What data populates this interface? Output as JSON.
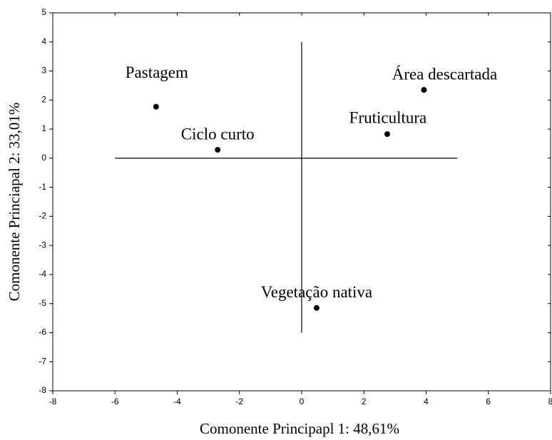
{
  "chart_data": {
    "type": "scatter",
    "x_label": "Comonente Principapl 1: 48,61%",
    "y_label": "Comonente Princiapal 2: 33,01%",
    "series": [
      {
        "name": null,
        "color": "#000000",
        "labels": [
          "Pastagem",
          "Ciclo curto",
          "Área descartada",
          "Fruticultura",
          "Vegetação nativa"
        ],
        "x": [
          -4.68,
          -2.7,
          3.93,
          2.75,
          0.48
        ],
        "values": [
          1.77,
          0.29,
          2.35,
          0.83,
          -5.15
        ]
      }
    ],
    "reference_lines": [
      {
        "x": [
          -6,
          5
        ],
        "y": [
          0,
          0
        ]
      },
      {
        "x": [
          0,
          0
        ],
        "y": [
          -6,
          4
        ]
      }
    ],
    "xlim": [
      -8,
      8
    ],
    "ylim": [
      -8,
      5
    ],
    "xticks": [
      -8,
      -6,
      -4,
      -2,
      0,
      2,
      4,
      6,
      8
    ],
    "yticks": [
      -8,
      -7,
      -6,
      -5,
      -4,
      -3,
      -2,
      -1,
      0,
      1,
      2,
      3,
      4,
      5
    ]
  }
}
